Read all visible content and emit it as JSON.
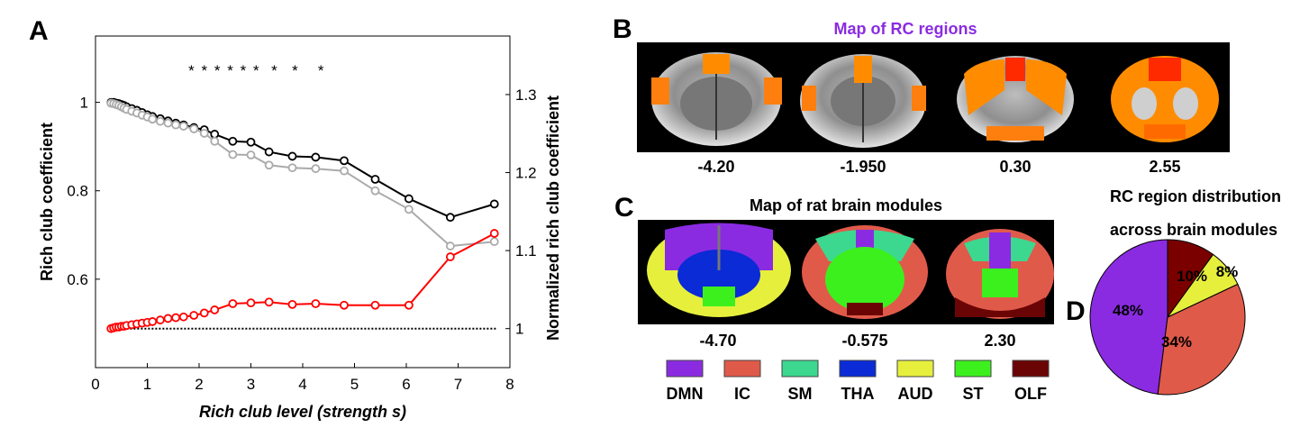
{
  "panels": {
    "a": "A",
    "b": "B",
    "c": "C",
    "d": "D"
  },
  "chart_data": [
    {
      "type": "line",
      "panel": "A",
      "xlabel": "Rich club level (strength s)",
      "ylabel": "Rich club coefficient",
      "ylabel_right": "Normalized rich club coefficient",
      "xlim": [
        0,
        8
      ],
      "ylim": [
        0.4,
        1.15
      ],
      "ylim_right": [
        0.95,
        1.375
      ],
      "xticks": [
        "0",
        "1",
        "2",
        "3",
        "4",
        "5",
        "6",
        "7",
        "8"
      ],
      "yticks": [
        "0.6",
        "0.8",
        "1"
      ],
      "yticks_right": [
        "1",
        "1.1",
        "1.2",
        "1.3"
      ],
      "significance_marks": {
        "symbol": "*",
        "x": [
          1.85,
          2.1,
          2.35,
          2.6,
          2.85,
          3.1,
          3.45,
          3.85,
          4.35
        ]
      },
      "series": [
        {
          "color": "#000000",
          "axis": "left",
          "x": [
            0.3,
            0.35,
            0.4,
            0.45,
            0.5,
            0.55,
            0.6,
            0.7,
            0.8,
            0.9,
            1.0,
            1.1,
            1.25,
            1.4,
            1.55,
            1.7,
            1.9,
            2.1,
            2.3,
            2.65,
            3.0,
            3.35,
            3.8,
            4.25,
            4.8,
            5.4,
            6.05,
            6.85,
            7.7
          ],
          "values": [
            1.0,
            1.0,
            0.998,
            0.997,
            0.995,
            0.993,
            0.99,
            0.986,
            0.982,
            0.977,
            0.972,
            0.968,
            0.963,
            0.958,
            0.953,
            0.949,
            0.943,
            0.938,
            0.928,
            0.912,
            0.91,
            0.888,
            0.878,
            0.876,
            0.868,
            0.826,
            0.782,
            0.74,
            0.77
          ]
        },
        {
          "color": "#aaaaaa",
          "axis": "left",
          "x": [
            0.3,
            0.35,
            0.4,
            0.45,
            0.5,
            0.55,
            0.6,
            0.7,
            0.8,
            0.9,
            1.0,
            1.1,
            1.25,
            1.4,
            1.55,
            1.7,
            1.9,
            2.1,
            2.3,
            2.65,
            3.0,
            3.35,
            3.8,
            4.25,
            4.8,
            5.4,
            6.05,
            6.85,
            7.7
          ],
          "values": [
            0.998,
            0.997,
            0.995,
            0.993,
            0.99,
            0.987,
            0.984,
            0.98,
            0.976,
            0.971,
            0.967,
            0.962,
            0.957,
            0.953,
            0.949,
            0.946,
            0.94,
            0.93,
            0.912,
            0.882,
            0.881,
            0.858,
            0.852,
            0.85,
            0.845,
            0.8,
            0.758,
            0.675,
            0.685
          ]
        },
        {
          "color": "#ff0000",
          "axis": "right",
          "x": [
            0.3,
            0.35,
            0.4,
            0.45,
            0.5,
            0.55,
            0.6,
            0.7,
            0.8,
            0.9,
            1.0,
            1.1,
            1.25,
            1.4,
            1.55,
            1.7,
            1.9,
            2.1,
            2.3,
            2.65,
            3.0,
            3.35,
            3.8,
            4.25,
            4.8,
            5.4,
            6.05,
            6.85,
            7.7
          ],
          "values": [
            1.0,
            1.001,
            1.002,
            1.002,
            1.003,
            1.003,
            1.004,
            1.005,
            1.006,
            1.007,
            1.008,
            1.009,
            1.011,
            1.013,
            1.014,
            1.015,
            1.017,
            1.02,
            1.024,
            1.032,
            1.033,
            1.034,
            1.031,
            1.032,
            1.03,
            1.03,
            1.03,
            1.092,
            1.122
          ]
        }
      ],
      "reference_line": {
        "axis": "right",
        "y": 1,
        "style": "dotted",
        "xlim": [
          0.25,
          7.75
        ]
      }
    },
    {
      "type": "pie",
      "panel": "D",
      "title_lines": [
        "RC region distribution",
        "across brain modules"
      ],
      "labels": [
        "DMN",
        "IC",
        "AUD",
        "OLF"
      ],
      "values": [
        48,
        34,
        8,
        10
      ],
      "value_labels": [
        "48%",
        "34%",
        "8%",
        "10%"
      ],
      "colors": [
        "#8a2be2",
        "#e05a4a",
        "#e6f03c",
        "#7a0000"
      ]
    }
  ],
  "panelB": {
    "title": "Map of RC regions",
    "coords": [
      "-4.20",
      "-1.950",
      "0.30",
      "2.55"
    ]
  },
  "panelC": {
    "title": "Map of rat brain modules",
    "coords": [
      "-4.70",
      "-0.575",
      "2.30"
    ],
    "legend": [
      {
        "label": "DMN",
        "color": "#8a2be2"
      },
      {
        "label": "IC",
        "color": "#e05a4a"
      },
      {
        "label": "SM",
        "color": "#3cd890"
      },
      {
        "label": "THA",
        "color": "#0a2bd6"
      },
      {
        "label": "AUD",
        "color": "#e6f03c"
      },
      {
        "label": "ST",
        "color": "#3cf01e"
      },
      {
        "label": "OLF",
        "color": "#6b0505"
      }
    ]
  }
}
